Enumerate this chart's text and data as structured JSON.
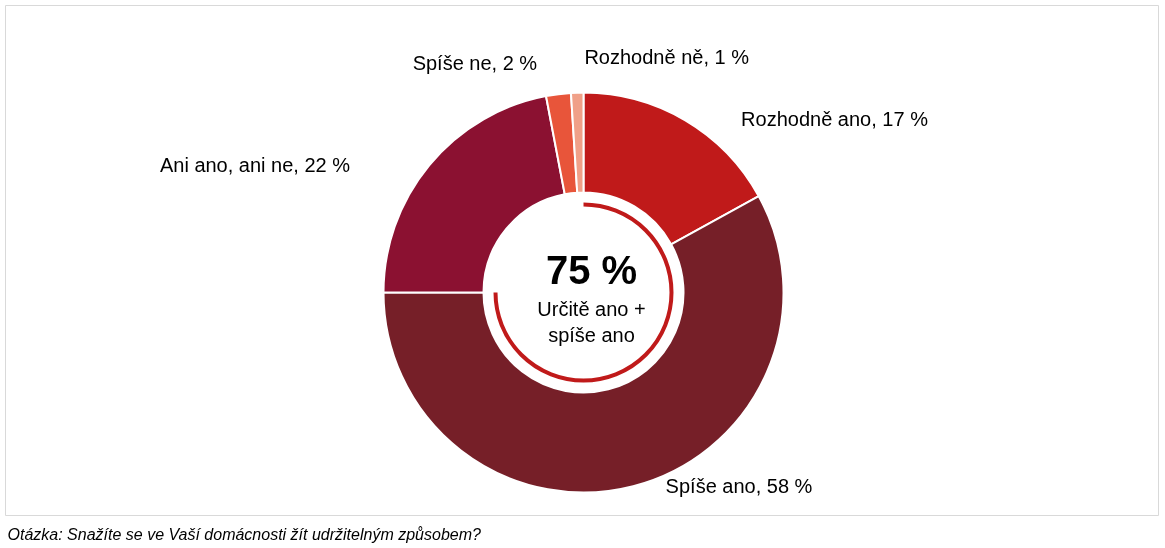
{
  "chart_data": {
    "type": "donut",
    "categories": [
      "Rozhodně ano",
      "Spíše ano",
      "Ani ano, ani ne",
      "Spíše ne",
      "Rozhodně ně"
    ],
    "values": [
      17,
      58,
      22,
      2,
      1
    ],
    "colors": [
      "#c01a1a",
      "#761f28",
      "#8b1131",
      "#e8553a",
      "#f0a088"
    ],
    "value_labels": [
      "17 %",
      "58 %",
      "22 %",
      "2 %",
      "1 %"
    ],
    "annotations": [
      "75 %",
      "Určitě ano +\nspíše ano",
      "Otázka: Snažíte se ve Vaší domácnosti žít udržitelným způsobem?"
    ]
  }
}
